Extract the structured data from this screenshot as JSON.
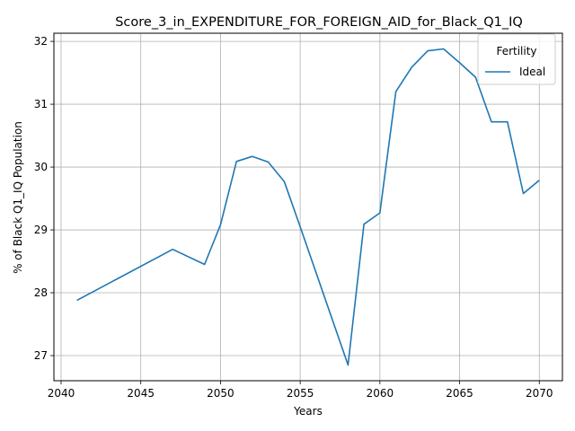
{
  "chart_data": {
    "type": "line",
    "title": "Score_3_in_EXPENDITURE_FOR_FOREIGN_AID_for_Black_Q1_IQ",
    "xlabel": "Years",
    "ylabel": "% of Black Q1_IQ Population",
    "xlim": [
      2039.55,
      2071.45
    ],
    "ylim": [
      26.6,
      32.13
    ],
    "x_ticks": [
      2040,
      2045,
      2050,
      2055,
      2060,
      2065,
      2070
    ],
    "y_ticks": [
      27,
      28,
      29,
      30,
      31,
      32
    ],
    "grid": true,
    "legend": {
      "title": "Fertility",
      "position": "top-right"
    },
    "series": [
      {
        "name": "Ideal",
        "color": "#1f77b4",
        "x": [
          2041,
          2047,
          2049,
          2050,
          2051,
          2052,
          2053,
          2054,
          2055,
          2058,
          2059,
          2060,
          2061,
          2062,
          2063,
          2064,
          2065,
          2066,
          2067,
          2068,
          2069,
          2070
        ],
        "y": [
          27.88,
          28.69,
          28.45,
          29.08,
          30.09,
          30.17,
          30.08,
          29.77,
          29.05,
          26.85,
          29.09,
          29.27,
          31.2,
          31.59,
          31.85,
          31.88,
          31.66,
          31.43,
          30.72,
          30.72,
          29.58,
          29.79
        ]
      }
    ]
  }
}
